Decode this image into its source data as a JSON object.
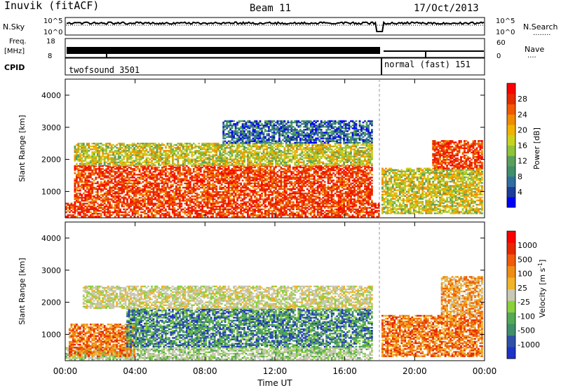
{
  "header": {
    "station": "Inuvik (fitACF)",
    "beam": "Beam 11",
    "date": "17/Oct/2013"
  },
  "panels": {
    "nsky": {
      "left_label": "N.Sky",
      "right_label": "N.Search",
      "right_dots": "........",
      "left_ticks": [
        "10^5",
        "10^0"
      ],
      "right_ticks": [
        "10^5",
        "10^0"
      ]
    },
    "freq": {
      "left_label_1": "Freq.",
      "left_label_2": "[MHz]",
      "right_label": "Nave",
      "right_dots": "....",
      "left_ticks": [
        "18",
        "8"
      ],
      "right_ticks": [
        "60",
        "0"
      ]
    },
    "cpid": {
      "label": "CPID",
      "modes": [
        {
          "name": "twofsound 3501",
          "start": "00:00",
          "end": "18:00"
        },
        {
          "name": "normal (fast) 151",
          "start": "18:00",
          "end": "24:00"
        }
      ]
    }
  },
  "chart_data": [
    {
      "type": "heatmap",
      "title": "Power",
      "xlabel": "",
      "ylabel": "Slant Range [km]",
      "xlim": [
        "00:00",
        "24:00"
      ],
      "ylim": [
        180,
        4500
      ],
      "x_ticks": [
        "00:00",
        "04:00",
        "08:00",
        "12:00",
        "16:00",
        "20:00",
        "00:00"
      ],
      "y_ticks": [
        1000,
        2000,
        3000,
        4000
      ],
      "colorbar": {
        "label": "Power [dB]",
        "ticks": [
          "28",
          "24",
          "20",
          "16",
          "12",
          "8",
          "4"
        ],
        "range": [
          0,
          32
        ],
        "colors": [
          "#0000ff",
          "#1e3c99",
          "#2f6fa0",
          "#3f8f6a",
          "#5aa05a",
          "#8fc33a",
          "#c8d21e",
          "#f0b400",
          "#f08c00",
          "#f05a00",
          "#e62a00",
          "#ff0000"
        ]
      },
      "mode_change": "18:00",
      "bands": [
        {
          "start_h": 0.0,
          "end_h": 17.9,
          "range_km": [
            200,
            620
          ],
          "level": "high"
        },
        {
          "start_h": 0.5,
          "end_h": 17.5,
          "range_km": [
            650,
            1800
          ],
          "level": "high"
        },
        {
          "start_h": 0.5,
          "end_h": 17.5,
          "range_km": [
            1800,
            2500
          ],
          "level": "mid"
        },
        {
          "start_h": 9.0,
          "end_h": 17.5,
          "range_km": [
            2500,
            3200
          ],
          "level": "low"
        },
        {
          "start_h": 18.1,
          "end_h": 23.9,
          "range_km": [
            300,
            1700
          ],
          "level": "mid"
        },
        {
          "start_h": 21.0,
          "end_h": 23.9,
          "range_km": [
            1700,
            2600
          ],
          "level": "high"
        }
      ]
    },
    {
      "type": "heatmap",
      "title": "Velocity",
      "xlabel": "Time UT",
      "ylabel": "Slant Range [km]",
      "xlim": [
        "00:00",
        "24:00"
      ],
      "ylim": [
        180,
        4500
      ],
      "x_ticks": [
        "00:00",
        "04:00",
        "08:00",
        "12:00",
        "16:00",
        "20:00",
        "00:00"
      ],
      "y_ticks": [
        1000,
        2000,
        3000,
        4000
      ],
      "colorbar": {
        "label": "Velocity [m s",
        "label_sup": "-1",
        "label_end": "]",
        "ticks": [
          "1000",
          "500",
          "100",
          "25",
          "-25",
          "-100",
          "-500",
          "-1000"
        ],
        "colors": [
          "#1e32c8",
          "#2e50a8",
          "#3f8f6a",
          "#55a855",
          "#8ccf3c",
          "#c8c8b4",
          "#f0b428",
          "#f08c14",
          "#f05a0a",
          "#e62800",
          "#ff0000"
        ]
      },
      "mode_change": "18:00",
      "bands": [
        {
          "start_h": 0.0,
          "end_h": 17.5,
          "range_km": [
            200,
            600
          ],
          "level": "grey-green"
        },
        {
          "start_h": 0.2,
          "end_h": 4.0,
          "range_km": [
            300,
            1300
          ],
          "level": "orange"
        },
        {
          "start_h": 3.5,
          "end_h": 17.5,
          "range_km": [
            600,
            1800
          ],
          "level": "green"
        },
        {
          "start_h": 1.0,
          "end_h": 17.5,
          "range_km": [
            1800,
            2500
          ],
          "level": "grey"
        },
        {
          "start_h": 18.1,
          "end_h": 23.9,
          "range_km": [
            300,
            1600
          ],
          "level": "orange"
        },
        {
          "start_h": 21.5,
          "end_h": 23.9,
          "range_km": [
            1600,
            2800
          ],
          "level": "orange-grey"
        }
      ]
    }
  ]
}
